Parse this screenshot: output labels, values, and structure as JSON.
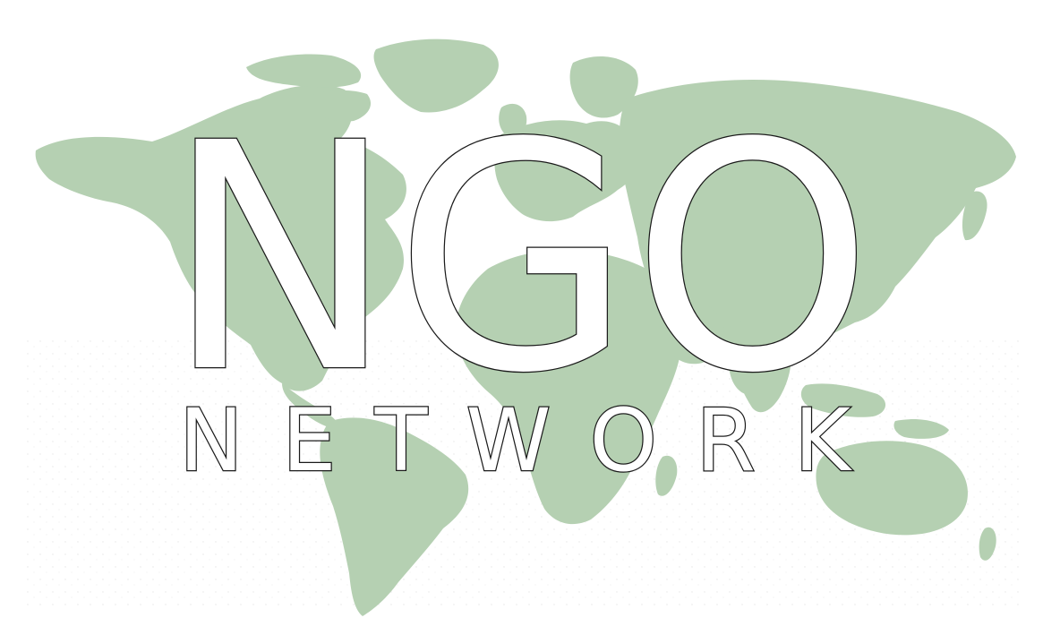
{
  "logo": {
    "title": "NGO",
    "subtitle": "NETWORK"
  },
  "colors": {
    "background": "#ffffff",
    "continents": "#b5d0b2",
    "text_fill": "#ffffff",
    "text_outline": "#1a1a1a"
  }
}
